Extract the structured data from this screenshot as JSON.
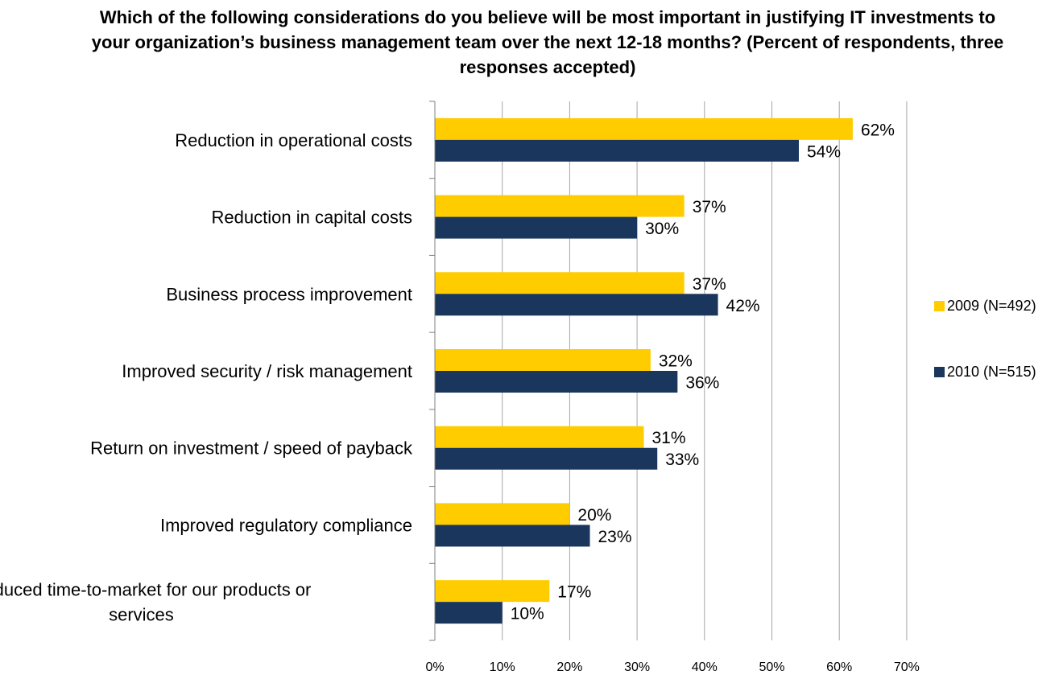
{
  "chart_data": {
    "type": "bar",
    "orientation": "horizontal",
    "title": "Which of the following considerations do you believe will be most important in justifying IT investments to your organization’s business management team over the next 12-18 months? (Percent of respondents, three responses accepted)",
    "categories": [
      "Reduction in operational costs",
      "Reduction in capital costs",
      "Business process improvement",
      "Improved security / risk management",
      "Return on investment / speed of payback",
      "Improved regulatory compliance",
      "Reduced time-to-market for our products or services"
    ],
    "series": [
      {
        "name": "2009 (N=492)",
        "color": "#FFCC00",
        "values": [
          62,
          37,
          37,
          32,
          31,
          20,
          17
        ]
      },
      {
        "name": "2010 (N=515)",
        "color": "#1B365D",
        "values": [
          54,
          30,
          42,
          36,
          33,
          23,
          10
        ]
      }
    ],
    "xlim": [
      0,
      70
    ],
    "xticks": [
      0,
      10,
      20,
      30,
      40,
      50,
      60,
      70
    ],
    "tick_suffix": "%",
    "value_suffix": "%",
    "grid": "vertical",
    "legend_position": "right"
  }
}
